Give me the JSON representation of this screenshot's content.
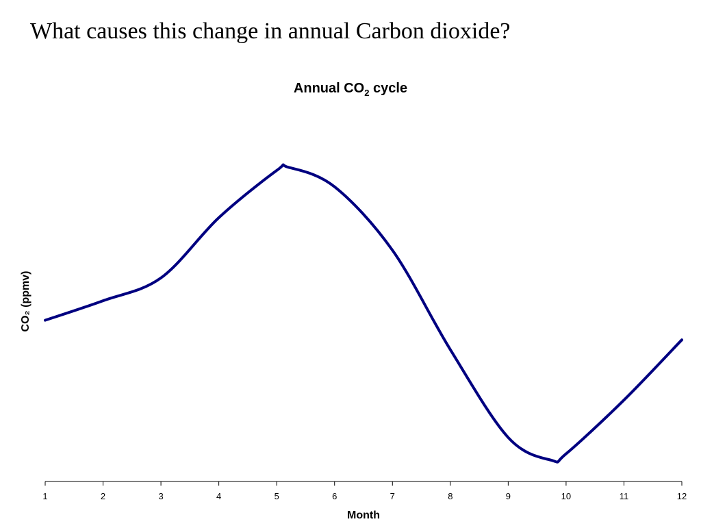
{
  "slide": {
    "title": "What causes this change in annual Carbon dioxide?"
  },
  "chart_data": {
    "type": "line",
    "title": {
      "prefix": "Annual CO",
      "subscript": "2",
      "suffix": " cycle"
    },
    "xlabel": "Month",
    "ylabel": "CO₂ (ppmv)",
    "x": [
      1,
      2,
      3,
      4,
      5,
      5.2,
      6,
      7,
      8,
      9,
      9.75,
      10,
      11,
      12
    ],
    "y": [
      0.6,
      1.8,
      3.2,
      6.9,
      9.8,
      10.0,
      8.8,
      4.9,
      -1.2,
      -6.6,
      -8.0,
      -7.6,
      -4.3,
      -0.6
    ],
    "x_ticks": [
      "1",
      "2",
      "3",
      "4",
      "5",
      "6",
      "7",
      "8",
      "9",
      "10",
      "11",
      "12"
    ],
    "xlim": [
      1,
      12
    ],
    "ylim": [
      -9.3,
      12.7
    ],
    "y_tick_labels_shown": false,
    "grid": false,
    "line_color": "#000080"
  }
}
